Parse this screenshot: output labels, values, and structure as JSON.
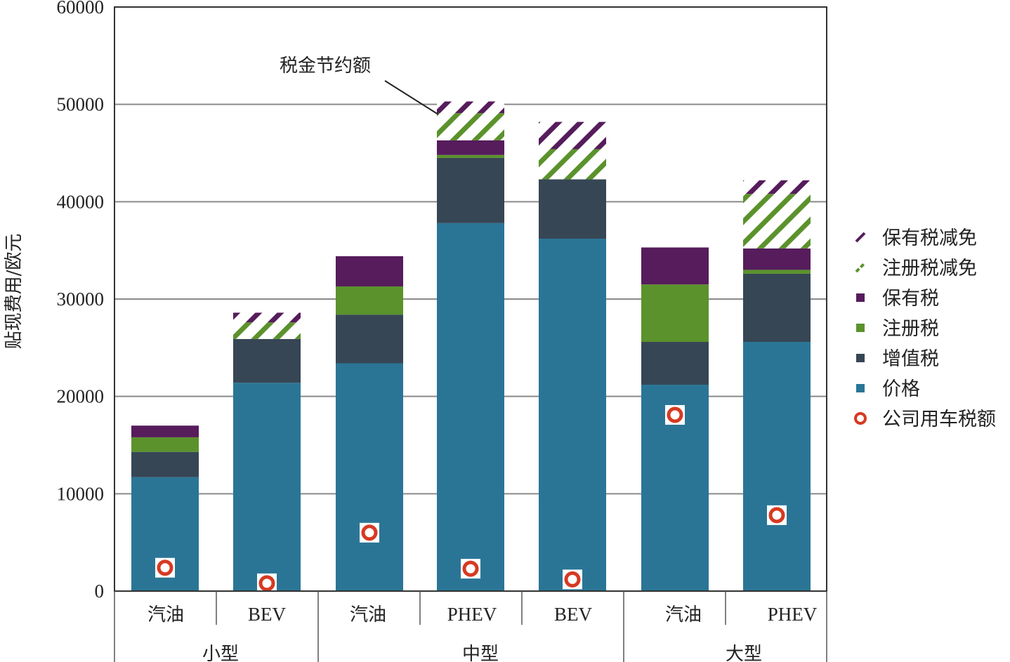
{
  "chart_data": {
    "type": "bar",
    "stacked": true,
    "title": "",
    "ylabel": "贴现费用/欧元",
    "xlabel": "",
    "ylim": [
      0,
      60000
    ],
    "yticks": [
      0,
      10000,
      20000,
      30000,
      40000,
      50000,
      60000
    ],
    "ytick_labels": [
      "0",
      "10000",
      "20000",
      "30000",
      "40000",
      "50000",
      "60000"
    ],
    "grid": true,
    "categories": [
      "汽油",
      "BEV",
      "汽油",
      "PHEV",
      "BEV",
      "汽油",
      "PHEV"
    ],
    "groups": [
      {
        "label": "小型",
        "count": 2
      },
      {
        "label": "中型",
        "count": 3
      },
      {
        "label": "大型",
        "count": 2
      }
    ],
    "series": [
      {
        "name": "价格",
        "color": "#2a7596",
        "pattern": "solid",
        "values": [
          11700,
          21400,
          23400,
          37800,
          36200,
          21200,
          25600
        ]
      },
      {
        "name": "增值税",
        "color": "#364655",
        "pattern": "solid",
        "values": [
          2600,
          4500,
          5000,
          6700,
          6100,
          4400,
          7000
        ]
      },
      {
        "name": "注册税",
        "color": "#5b922c",
        "pattern": "solid",
        "values": [
          1500,
          0,
          2900,
          300,
          0,
          5900,
          400
        ]
      },
      {
        "name": "保有税",
        "color": "#561c5c",
        "pattern": "solid",
        "values": [
          1200,
          0,
          3100,
          1500,
          0,
          3800,
          2200
        ]
      },
      {
        "name": "注册税减免",
        "color": "#5b922c",
        "pattern": "hatch",
        "values": [
          0,
          1700,
          0,
          2800,
          3100,
          0,
          5600
        ]
      },
      {
        "name": "保有税减免",
        "color": "#561c5c",
        "pattern": "hatch",
        "values": [
          0,
          1000,
          0,
          1200,
          2800,
          0,
          1400
        ]
      }
    ],
    "markers": {
      "name": "公司用车税额",
      "color": "#d63a22",
      "values": [
        2400,
        800,
        6000,
        2300,
        1200,
        18100,
        7800
      ]
    },
    "legend_order": [
      "保有税减免",
      "注册税减免",
      "保有税",
      "注册税",
      "增值税",
      "价格",
      "公司用车税额"
    ],
    "legend_position": "right",
    "annotation": {
      "text": "税金节约额",
      "target_category_index": 3
    }
  }
}
